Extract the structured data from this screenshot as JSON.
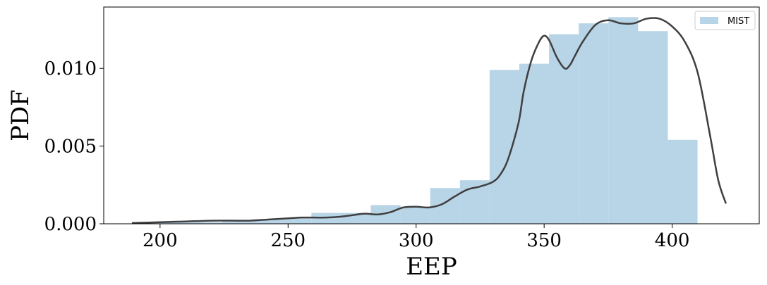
{
  "chart_data": {
    "type": "bar",
    "xlabel": "EEP",
    "ylabel": "PDF",
    "xlim": [
      178,
      434
    ],
    "ylim": [
      0,
      0.01395
    ],
    "xticks": [
      200,
      250,
      300,
      350,
      400
    ],
    "xtick_labels": [
      "200",
      "250",
      "300",
      "350",
      "400"
    ],
    "yticks": [
      0.0,
      0.005,
      0.01
    ],
    "ytick_labels": [
      "0.000",
      "0.005",
      "0.010"
    ],
    "legend": {
      "position": "top-right",
      "entries": [
        "MIST"
      ]
    },
    "grid": false,
    "series": [
      {
        "name": "MIST",
        "kind": "histogram",
        "color": "#b8d4e7",
        "bin_edges": [
          189.5,
          201.1,
          212.7,
          224.3,
          235.9,
          247.5,
          259.1,
          270.7,
          282.3,
          293.9,
          305.5,
          317.1,
          328.7,
          340.3,
          351.9,
          363.5,
          375.1,
          386.7,
          398.3,
          409.9,
          421.5
        ],
        "values": [
          5e-05,
          0.0001,
          0.0001,
          0.0002,
          0.0003,
          0.00035,
          0.0007,
          0.0007,
          0.0012,
          0.0011,
          0.0023,
          0.0028,
          0.0099,
          0.0103,
          0.0122,
          0.0129,
          0.0133,
          0.0124,
          0.0054,
          0.0
        ]
      },
      {
        "kind": "density-curve",
        "color": "#3f3f3f",
        "x": [
          189,
          200,
          210,
          220,
          230,
          235,
          240,
          250,
          255,
          260,
          265,
          270,
          275,
          280,
          285,
          290,
          295,
          300,
          305,
          310,
          315,
          320,
          325,
          330,
          333,
          336,
          340,
          342,
          345,
          348,
          350,
          352,
          355,
          358,
          360,
          362,
          365,
          370,
          375,
          380,
          385,
          390,
          395,
          400,
          405,
          410,
          415,
          418,
          421
        ],
        "y": [
          5e-05,
          0.0001,
          0.00015,
          0.0002,
          0.0002,
          0.0002,
          0.00025,
          0.00035,
          0.0004,
          0.0004,
          0.0004,
          0.00045,
          0.00055,
          0.00065,
          0.0006,
          0.00075,
          0.00105,
          0.0011,
          0.00105,
          0.00125,
          0.00175,
          0.0022,
          0.0024,
          0.0027,
          0.0032,
          0.0042,
          0.0065,
          0.0085,
          0.0105,
          0.0117,
          0.0121,
          0.0118,
          0.0107,
          0.01,
          0.0102,
          0.0108,
          0.0117,
          0.0128,
          0.0131,
          0.0129,
          0.0129,
          0.0132,
          0.0132,
          0.0127,
          0.0117,
          0.0097,
          0.0055,
          0.0028,
          0.0013
        ]
      }
    ]
  }
}
